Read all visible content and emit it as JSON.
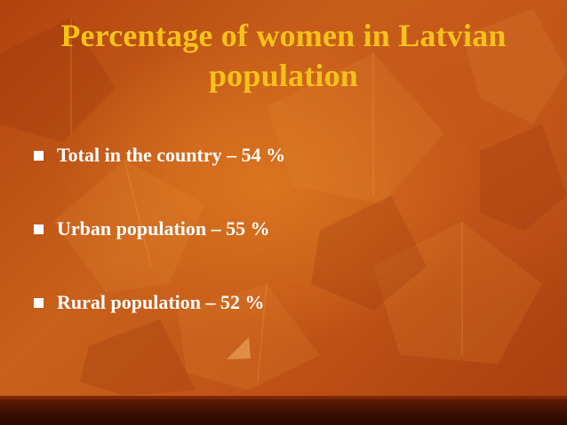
{
  "slide": {
    "title_line1": "Percentage of women in Latvian",
    "title_line2": "population",
    "bullets": [
      {
        "text": "Total in the country – 54 %"
      },
      {
        "text": "Urban population – 55 %"
      },
      {
        "text": "Rural population – 52 %"
      }
    ]
  },
  "colors": {
    "title": "#f6c21a",
    "bullet_text": "#ffffff",
    "background": "#c25518",
    "bottom_band": "#3a0f02"
  }
}
